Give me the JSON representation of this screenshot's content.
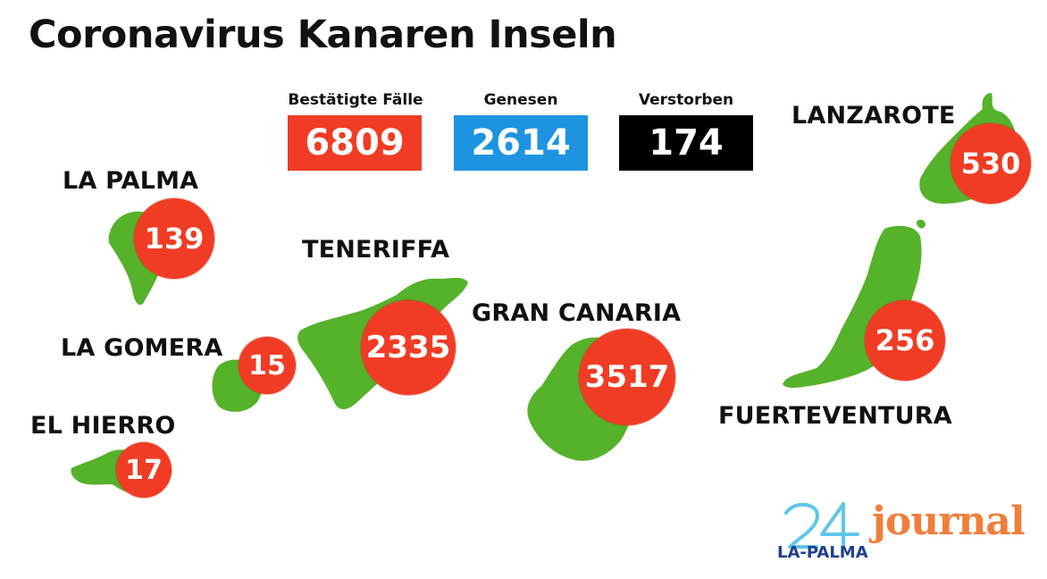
{
  "title": "Coronavirus Kanaren Inseln",
  "stats": {
    "confirmed": {
      "label": "Bestätigte Fälle",
      "value": "6809",
      "color": "#f03c24"
    },
    "recovered": {
      "label": "Genesen",
      "value": "2614",
      "color": "#1e94e0"
    },
    "deceased": {
      "label": "Verstorben",
      "value": "174",
      "color": "#000000"
    }
  },
  "colors": {
    "land": "#55b22a",
    "badge": "#f03c24"
  },
  "islands": {
    "la_palma": {
      "name": "LA PALMA",
      "cases": "139"
    },
    "la_gomera": {
      "name": "LA GOMERA",
      "cases": "15"
    },
    "el_hierro": {
      "name": "EL HIERRO",
      "cases": "17"
    },
    "tenerife": {
      "name": "TENERIFFA",
      "cases": "2335"
    },
    "gran_canaria": {
      "name": "GRAN CANARIA",
      "cases": "3517"
    },
    "lanzarote": {
      "name": "LANZAROTE",
      "cases": "530"
    },
    "fuerteventura": {
      "name": "FUERTEVENTURA",
      "cases": "256"
    }
  },
  "logo": {
    "number": "24",
    "subtitle": "LA-PALMA",
    "brand": "journal"
  }
}
